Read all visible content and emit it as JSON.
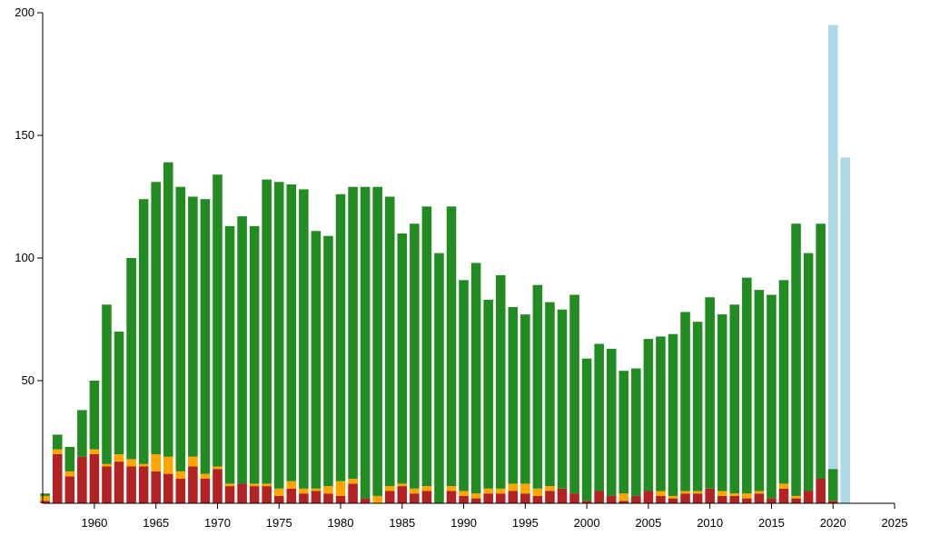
{
  "chart_data": {
    "type": "bar",
    "stacked": true,
    "title": "",
    "xlabel": "",
    "ylabel": "",
    "xlim": [
      1955.8,
      2025
    ],
    "ylim": [
      0,
      200
    ],
    "x_ticks": [
      1960,
      1965,
      1970,
      1975,
      1980,
      1985,
      1990,
      1995,
      2000,
      2005,
      2010,
      2015,
      2020,
      2025
    ],
    "y_ticks": [
      50,
      100,
      150,
      200
    ],
    "grid": false,
    "legend": "none",
    "x": [
      1956,
      1957,
      1958,
      1959,
      1960,
      1961,
      1962,
      1963,
      1964,
      1965,
      1966,
      1967,
      1968,
      1969,
      1970,
      1971,
      1972,
      1973,
      1974,
      1975,
      1976,
      1977,
      1978,
      1979,
      1980,
      1981,
      1982,
      1983,
      1984,
      1985,
      1986,
      1987,
      1988,
      1989,
      1990,
      1991,
      1992,
      1993,
      1994,
      1995,
      1996,
      1997,
      1998,
      1999,
      2000,
      2001,
      2002,
      2003,
      2004,
      2005,
      2006,
      2007,
      2008,
      2009,
      2010,
      2011,
      2012,
      2013,
      2014,
      2015,
      2016,
      2017,
      2018,
      2019,
      2020,
      2021
    ],
    "series": [
      {
        "color": "#b22222",
        "values": [
          1,
          20,
          11,
          19,
          20,
          15,
          17,
          15,
          15,
          13,
          12,
          10,
          15,
          10,
          14,
          7,
          8,
          7,
          7,
          3,
          6,
          4,
          5,
          4,
          3,
          8,
          2,
          0,
          5,
          7,
          4,
          5,
          0,
          5,
          3,
          2,
          4,
          4,
          5,
          4,
          3,
          5,
          6,
          4,
          1,
          5,
          3,
          1,
          3,
          5,
          3,
          2,
          4,
          4,
          6,
          3,
          3,
          2,
          4,
          2,
          6,
          2,
          5,
          10,
          1,
          0
        ]
      },
      {
        "color": "#ffa500",
        "values": [
          2,
          2,
          2,
          0,
          2,
          1,
          3,
          3,
          1,
          7,
          7,
          3,
          4,
          2,
          1,
          1,
          0,
          1,
          1,
          3,
          3,
          2,
          1,
          3,
          6,
          2,
          0,
          3,
          2,
          1,
          2,
          2,
          0,
          2,
          2,
          2,
          2,
          2,
          3,
          4,
          3,
          2,
          0,
          0,
          0,
          0,
          0,
          3,
          0,
          0,
          2,
          1,
          1,
          1,
          0,
          2,
          1,
          2,
          1,
          0,
          2,
          1,
          0,
          0,
          0,
          0
        ]
      },
      {
        "color": "#228b22",
        "values": [
          1,
          6,
          10,
          19,
          28,
          65,
          50,
          82,
          108,
          111,
          120,
          116,
          106,
          112,
          119,
          105,
          109,
          105,
          124,
          125,
          121,
          122,
          105,
          102,
          117,
          119,
          127,
          126,
          118,
          102,
          108,
          114,
          102,
          114,
          86,
          94,
          77,
          87,
          72,
          69,
          83,
          75,
          73,
          81,
          58,
          60,
          60,
          50,
          52,
          62,
          63,
          66,
          73,
          69,
          78,
          72,
          77,
          88,
          82,
          83,
          83,
          111,
          97,
          104,
          13,
          0
        ]
      },
      {
        "color": "#add8e6",
        "values": [
          0,
          0,
          0,
          0,
          0,
          0,
          0,
          0,
          0,
          0,
          0,
          0,
          0,
          0,
          0,
          0,
          0,
          0,
          0,
          0,
          0,
          0,
          0,
          0,
          0,
          0,
          0,
          0,
          0,
          0,
          0,
          0,
          0,
          0,
          0,
          0,
          0,
          0,
          0,
          0,
          0,
          0,
          0,
          0,
          0,
          0,
          0,
          0,
          0,
          0,
          0,
          0,
          0,
          0,
          0,
          0,
          0,
          0,
          0,
          0,
          0,
          0,
          0,
          0,
          181,
          141
        ]
      }
    ]
  }
}
